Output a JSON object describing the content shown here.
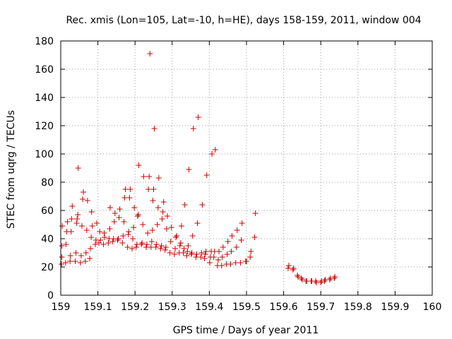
{
  "chart_data": {
    "type": "scatter",
    "title": "Rec. xmis (Lon=105, Lat=-10, h=HE), days 158-159, 2011, window 004",
    "xlabel": "GPS time / Days of year 2011",
    "ylabel": "STEC from uqrg / TECUs",
    "xlim": [
      159,
      160
    ],
    "ylim": [
      0,
      180
    ],
    "x_ticks": [
      "159",
      "159.1",
      "159.2",
      "159.3",
      "159.4",
      "159.5",
      "159.6",
      "159.7",
      "159.8",
      "159.9",
      "160"
    ],
    "y_ticks": [
      "0",
      "20",
      "40",
      "60",
      "80",
      "100",
      "120",
      "140",
      "160",
      "180"
    ],
    "grid": true,
    "marker": "+",
    "color": "#cc0000",
    "points": [
      [
        159.002,
        22
      ],
      [
        159.003,
        27
      ],
      [
        159.003,
        35
      ],
      [
        159.004,
        49
      ],
      [
        159.013,
        23
      ],
      [
        159.014,
        36
      ],
      [
        159.016,
        45
      ],
      [
        159.018,
        52
      ],
      [
        159.025,
        24
      ],
      [
        159.026,
        28
      ],
      [
        159.028,
        45
      ],
      [
        159.029,
        54
      ],
      [
        159.031,
        63
      ],
      [
        159.039,
        24
      ],
      [
        159.041,
        30
      ],
      [
        159.043,
        51
      ],
      [
        159.044,
        54
      ],
      [
        159.046,
        57
      ],
      [
        159.047,
        90
      ],
      [
        159.053,
        23
      ],
      [
        159.055,
        28
      ],
      [
        159.057,
        49
      ],
      [
        159.059,
        68
      ],
      [
        159.061,
        73
      ],
      [
        159.066,
        24
      ],
      [
        159.068,
        30
      ],
      [
        159.07,
        46
      ],
      [
        159.072,
        67
      ],
      [
        159.078,
        26
      ],
      [
        159.08,
        33
      ],
      [
        159.082,
        41
      ],
      [
        159.083,
        59
      ],
      [
        159.085,
        49
      ],
      [
        159.093,
        36
      ],
      [
        159.095,
        39
      ],
      [
        159.097,
        51
      ],
      [
        159.103,
        37
      ],
      [
        159.105,
        45
      ],
      [
        159.107,
        39
      ],
      [
        159.115,
        36
      ],
      [
        159.117,
        44
      ],
      [
        159.118,
        41
      ],
      [
        159.128,
        37
      ],
      [
        159.13,
        40
      ],
      [
        159.132,
        47
      ],
      [
        159.133,
        62
      ],
      [
        159.14,
        38
      ],
      [
        159.142,
        40
      ],
      [
        159.144,
        52
      ],
      [
        159.146,
        58
      ],
      [
        159.153,
        39
      ],
      [
        159.155,
        40
      ],
      [
        159.157,
        55
      ],
      [
        159.159,
        61
      ],
      [
        159.166,
        37
      ],
      [
        159.168,
        42
      ],
      [
        159.17,
        52
      ],
      [
        159.172,
        69
      ],
      [
        159.174,
        75
      ],
      [
        159.18,
        34
      ],
      [
        159.182,
        43
      ],
      [
        159.183,
        45
      ],
      [
        159.185,
        69
      ],
      [
        159.187,
        75
      ],
      [
        159.192,
        33
      ],
      [
        159.194,
        40
      ],
      [
        159.196,
        48
      ],
      [
        159.198,
        62
      ],
      [
        159.203,
        34
      ],
      [
        159.205,
        36
      ],
      [
        159.207,
        56
      ],
      [
        159.209,
        57
      ],
      [
        159.21,
        92
      ],
      [
        159.217,
        36
      ],
      [
        159.219,
        37
      ],
      [
        159.221,
        50
      ],
      [
        159.223,
        84
      ],
      [
        159.23,
        34
      ],
      [
        159.232,
        36
      ],
      [
        159.234,
        44
      ],
      [
        159.236,
        75
      ],
      [
        159.238,
        84
      ],
      [
        159.24,
        171
      ],
      [
        159.243,
        34
      ],
      [
        159.245,
        38
      ],
      [
        159.247,
        46
      ],
      [
        159.248,
        67
      ],
      [
        159.25,
        75
      ],
      [
        159.252,
        118
      ],
      [
        159.256,
        34
      ],
      [
        159.258,
        36
      ],
      [
        159.26,
        50
      ],
      [
        159.262,
        62
      ],
      [
        159.264,
        83
      ],
      [
        159.269,
        33
      ],
      [
        159.271,
        35
      ],
      [
        159.273,
        54
      ],
      [
        159.275,
        59
      ],
      [
        159.277,
        66
      ],
      [
        159.281,
        32
      ],
      [
        159.283,
        34
      ],
      [
        159.285,
        47
      ],
      [
        159.287,
        56
      ],
      [
        159.294,
        30
      ],
      [
        159.296,
        38
      ],
      [
        159.298,
        48
      ],
      [
        159.306,
        29
      ],
      [
        159.308,
        33
      ],
      [
        159.31,
        41
      ],
      [
        159.312,
        42
      ],
      [
        159.319,
        30
      ],
      [
        159.321,
        35
      ],
      [
        159.323,
        37
      ],
      [
        159.325,
        49
      ],
      [
        159.33,
        30
      ],
      [
        159.332,
        33
      ],
      [
        159.334,
        64
      ],
      [
        159.339,
        28
      ],
      [
        159.341,
        31
      ],
      [
        159.343,
        35
      ],
      [
        159.345,
        89
      ],
      [
        159.351,
        29
      ],
      [
        159.353,
        30
      ],
      [
        159.355,
        42
      ],
      [
        159.357,
        118
      ],
      [
        159.364,
        27
      ],
      [
        159.366,
        29
      ],
      [
        159.368,
        51
      ],
      [
        159.37,
        126
      ],
      [
        159.377,
        27
      ],
      [
        159.379,
        30
      ],
      [
        159.381,
        64
      ],
      [
        159.387,
        26
      ],
      [
        159.389,
        29
      ],
      [
        159.391,
        31
      ],
      [
        159.393,
        85
      ],
      [
        159.401,
        23
      ],
      [
        159.403,
        27
      ],
      [
        159.405,
        31
      ],
      [
        159.407,
        100
      ],
      [
        159.412,
        27
      ],
      [
        159.414,
        31
      ],
      [
        159.416,
        103
      ],
      [
        159.422,
        21
      ],
      [
        159.424,
        25
      ],
      [
        159.426,
        31
      ],
      [
        159.433,
        21
      ],
      [
        159.435,
        27
      ],
      [
        159.437,
        34
      ],
      [
        159.446,
        22
      ],
      [
        159.448,
        29
      ],
      [
        159.45,
        38
      ],
      [
        159.457,
        22
      ],
      [
        159.459,
        31
      ],
      [
        159.461,
        42
      ],
      [
        159.471,
        23
      ],
      [
        159.473,
        34
      ],
      [
        159.475,
        46
      ],
      [
        159.484,
        23
      ],
      [
        159.486,
        39
      ],
      [
        159.488,
        51
      ],
      [
        159.498,
        24
      ],
      [
        159.5,
        24
      ],
      [
        159.51,
        27
      ],
      [
        159.512,
        31
      ],
      [
        159.522,
        41
      ],
      [
        159.524,
        58
      ],
      [
        159.612,
        19
      ],
      [
        159.614,
        21
      ],
      [
        159.625,
        18
      ],
      [
        159.627,
        19
      ],
      [
        159.637,
        14
      ],
      [
        159.639,
        13
      ],
      [
        159.648,
        12
      ],
      [
        159.65,
        11
      ],
      [
        159.66,
        10
      ],
      [
        159.662,
        10
      ],
      [
        159.674,
        10
      ],
      [
        159.676,
        10
      ],
      [
        159.686,
        10
      ],
      [
        159.688,
        9
      ],
      [
        159.7,
        9
      ],
      [
        159.702,
        10
      ],
      [
        159.71,
        10
      ],
      [
        159.712,
        11
      ],
      [
        159.724,
        11
      ],
      [
        159.726,
        12
      ],
      [
        159.736,
        12
      ],
      [
        159.738,
        13
      ]
    ]
  }
}
